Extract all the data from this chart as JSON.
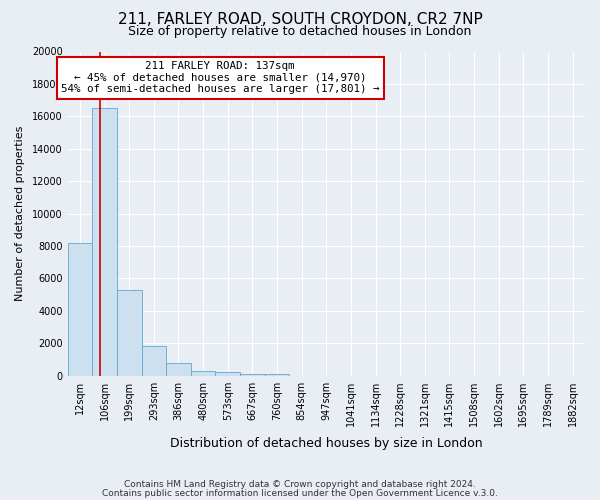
{
  "title1": "211, FARLEY ROAD, SOUTH CROYDON, CR2 7NP",
  "title2": "Size of property relative to detached houses in London",
  "xlabel": "Distribution of detached houses by size in London",
  "ylabel": "Number of detached properties",
  "bin_labels": [
    "12sqm",
    "106sqm",
    "199sqm",
    "293sqm",
    "386sqm",
    "480sqm",
    "573sqm",
    "667sqm",
    "760sqm",
    "854sqm",
    "947sqm",
    "1041sqm",
    "1134sqm",
    "1228sqm",
    "1321sqm",
    "1415sqm",
    "1508sqm",
    "1602sqm",
    "1695sqm",
    "1789sqm",
    "1882sqm"
  ],
  "bar_heights": [
    8200,
    16500,
    5300,
    1850,
    800,
    300,
    200,
    100,
    100,
    0,
    0,
    0,
    0,
    0,
    0,
    0,
    0,
    0,
    0,
    0
  ],
  "bar_color": "#cce0f0",
  "bar_edge_color": "#5fa8d3",
  "annotation_box_color": "#ffffff",
  "annotation_border_color": "#cc0000",
  "property_line_color": "#cc0000",
  "property_value": 137,
  "property_label": "211 FARLEY ROAD: 137sqm",
  "annotation_line1": "← 45% of detached houses are smaller (14,970)",
  "annotation_line2": "54% of semi-detached houses are larger (17,801) →",
  "ylim": [
    0,
    20000
  ],
  "yticks": [
    0,
    2000,
    4000,
    6000,
    8000,
    10000,
    12000,
    14000,
    16000,
    18000,
    20000
  ],
  "footer1": "Contains HM Land Registry data © Crown copyright and database right 2024.",
  "footer2": "Contains public sector information licensed under the Open Government Licence v.3.0.",
  "bg_color": "#e8eef4",
  "plot_bg_color": "#e8eef4",
  "bin_edges": [
    12,
    106,
    199,
    293,
    386,
    480,
    573,
    667,
    760,
    854,
    947,
    1041,
    1134,
    1228,
    1321,
    1415,
    1508,
    1602,
    1695,
    1789,
    1882
  ],
  "title1_fontsize": 11,
  "title2_fontsize": 9,
  "xlabel_fontsize": 9,
  "ylabel_fontsize": 8,
  "tick_fontsize": 7,
  "footer_fontsize": 6.5
}
